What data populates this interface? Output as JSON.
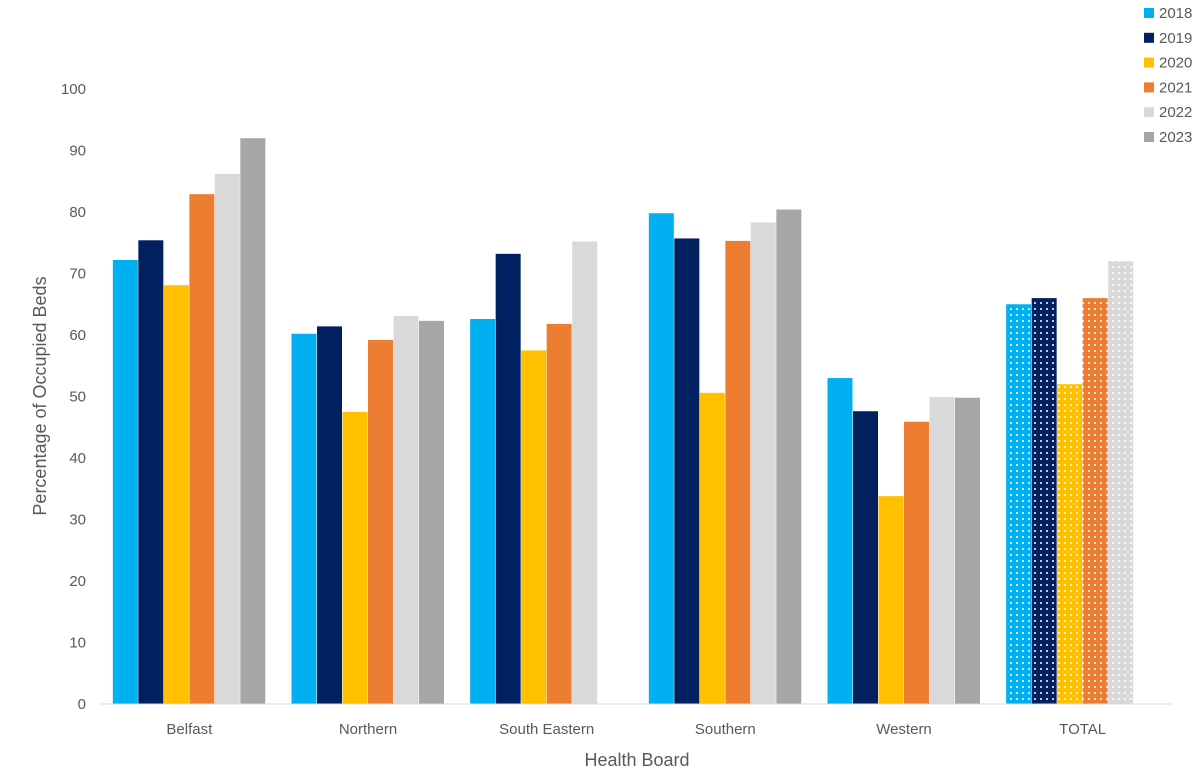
{
  "chart_data": {
    "type": "bar",
    "title": "",
    "xlabel": "Health Board",
    "ylabel": "Percentage of Occupied Beds",
    "ylim": [
      0,
      100
    ],
    "yticks": [
      0,
      10,
      20,
      30,
      40,
      50,
      60,
      70,
      80,
      90,
      100
    ],
    "categories": [
      "Belfast",
      "Northern",
      "South Eastern",
      "Southern",
      "Western",
      "TOTAL"
    ],
    "series": [
      {
        "name": "2018",
        "color": "#00b0f0",
        "values": [
          72.2,
          60.2,
          62.6,
          79.8,
          53.0,
          65.0
        ]
      },
      {
        "name": "2019",
        "color": "#002060",
        "values": [
          75.4,
          61.4,
          73.2,
          75.7,
          47.6,
          66.0
        ]
      },
      {
        "name": "2020",
        "color": "#ffc000",
        "values": [
          68.1,
          47.5,
          57.5,
          50.6,
          33.8,
          52.0
        ]
      },
      {
        "name": "2021",
        "color": "#ed7d31",
        "values": [
          82.9,
          59.2,
          61.8,
          75.3,
          45.9,
          66.0
        ]
      },
      {
        "name": "2022",
        "color": "#d9d9d9",
        "values": [
          86.2,
          63.1,
          75.2,
          78.3,
          49.9,
          72.0
        ]
      },
      {
        "name": "2023",
        "color": "#a6a6a6",
        "values": [
          92.0,
          62.3,
          null,
          80.4,
          49.8,
          null
        ]
      }
    ],
    "patterned_categories": [
      "TOTAL"
    ],
    "grid": false,
    "legend_position": "top-right"
  }
}
